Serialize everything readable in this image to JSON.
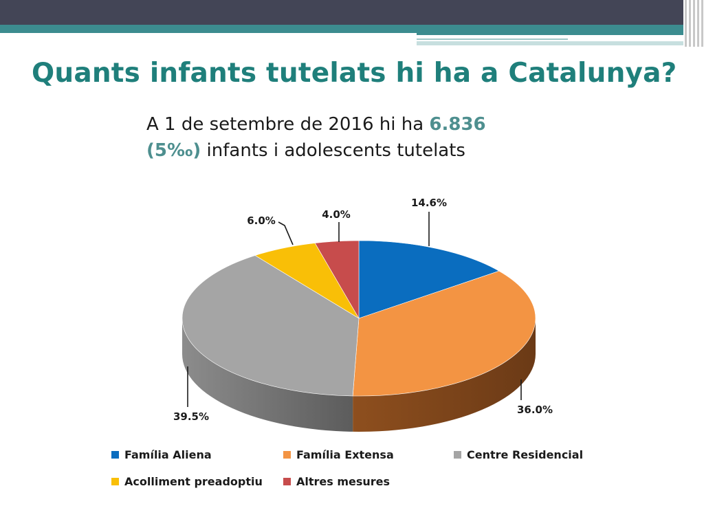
{
  "slide": {
    "title": "Quants infants tutelats hi ha a Catalunya?",
    "subtitle": {
      "p1": "A 1 de setembre de 2016 hi ha ",
      "count": "6.836",
      "rate": "(5‰)",
      "p2": " infants i adolescents tutelats"
    }
  },
  "chart_data": {
    "type": "pie",
    "three_d": true,
    "categories": [
      "Família Aliena",
      "Família Extensa",
      "Centre Residencial",
      "Acolliment preadoptiu",
      "Altres mesures"
    ],
    "values": [
      14.6,
      36.0,
      39.5,
      6.0,
      4.0
    ],
    "value_labels": [
      "14.6%",
      "36.0%",
      "39.5%",
      "6.0%",
      "4.0%"
    ],
    "unit": "%",
    "colors": [
      "#0a6dbf",
      "#f39443",
      "#a5a5a5",
      "#f9bf07",
      "#c74c4c"
    ],
    "legend_placement": "bottom"
  }
}
